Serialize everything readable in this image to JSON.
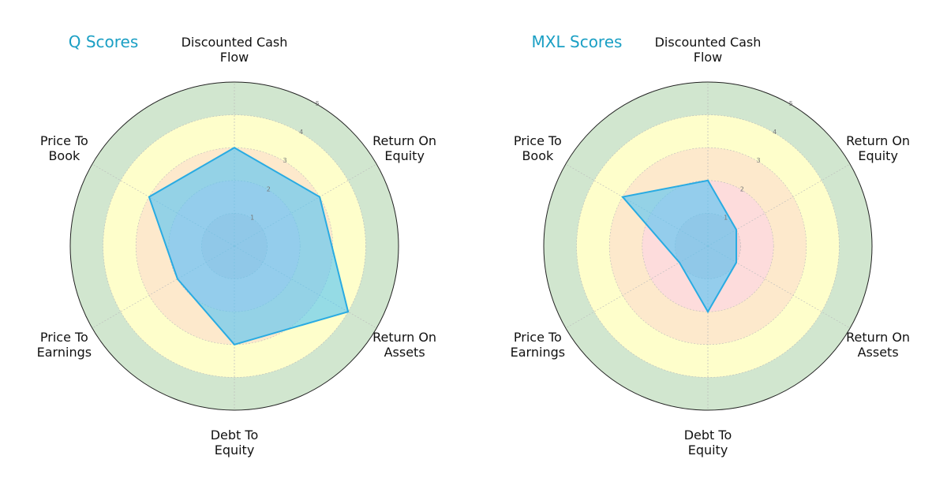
{
  "chart_data": [
    {
      "type": "radar",
      "title": "Q Scores",
      "categories": [
        "Discounted Cash\nFlow",
        "Return On\nEquity",
        "Return On\nAssets",
        "Debt To\nEquity",
        "Price To\nEarnings",
        "Price To\nBook"
      ],
      "values": [
        3,
        3,
        4,
        3,
        2,
        3
      ],
      "color": "#29abe2",
      "fill": "#4fc3f7",
      "rlim": [
        0,
        5
      ],
      "rticks": [
        1,
        2,
        3,
        4,
        5
      ],
      "band_colors": [
        "#f2cfd3",
        "#fddcdc",
        "#fde9cc",
        "#fefecb",
        "#d1e6cf"
      ],
      "grid": true
    },
    {
      "type": "radar",
      "title": "MXL Scores",
      "categories": [
        "Discounted Cash\nFlow",
        "Return On\nEquity",
        "Return On\nAssets",
        "Debt To\nEquity",
        "Price To\nEarnings",
        "Price To\nBook"
      ],
      "values": [
        2,
        1,
        1,
        2,
        1,
        3
      ],
      "color": "#29abe2",
      "fill": "#4fc3f7",
      "rlim": [
        0,
        5
      ],
      "rticks": [
        1,
        2,
        3,
        4,
        5
      ],
      "band_colors": [
        "#f2cfd3",
        "#fddcdc",
        "#fde9cc",
        "#fefecb",
        "#d1e6cf"
      ],
      "grid": true
    }
  ]
}
